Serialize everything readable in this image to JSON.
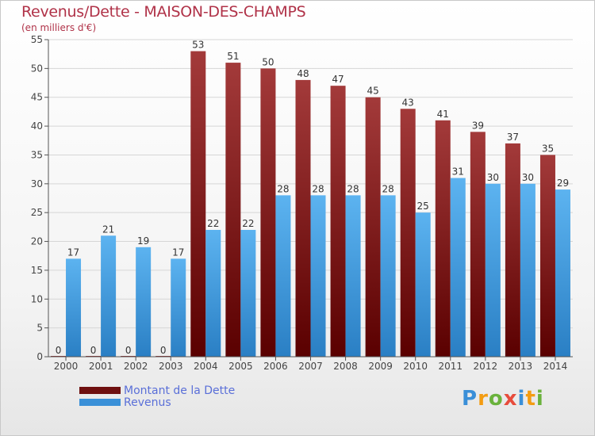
{
  "chart_data": {
    "type": "bar",
    "title": "Revenus/Dette - MAISON-DES-CHAMPS",
    "subtitle": "(en milliers d'€)",
    "categories": [
      "2000",
      "2001",
      "2002",
      "2003",
      "2004",
      "2005",
      "2006",
      "2007",
      "2008",
      "2009",
      "2010",
      "2011",
      "2012",
      "2013",
      "2014"
    ],
    "series": [
      {
        "name": "Montant de la Dette",
        "color": "#8b2a2a",
        "values": [
          0,
          0,
          0,
          0,
          53,
          51,
          50,
          48,
          47,
          45,
          43,
          41,
          39,
          37,
          35
        ]
      },
      {
        "name": "Revenus",
        "color": "#4ea6e6",
        "values": [
          17,
          21,
          19,
          17,
          22,
          22,
          28,
          28,
          28,
          28,
          25,
          31,
          30,
          30,
          29
        ]
      }
    ],
    "ylim": [
      0,
      55
    ],
    "yticks": [
      0,
      5,
      10,
      15,
      20,
      25,
      30,
      35,
      40,
      45,
      50,
      55
    ],
    "grid": true,
    "legend_position": "bottom-left"
  },
  "legend": {
    "items": [
      {
        "label": "Montant de la Dette",
        "color": "#6e0f0f"
      },
      {
        "label": "Revenus",
        "color": "#3a90d8"
      }
    ]
  },
  "logo": {
    "letters": [
      "P",
      "r",
      "o",
      "x",
      "i",
      "t",
      "i"
    ],
    "colors": [
      "#3a8fd8",
      "#f39c12",
      "#6ab23c",
      "#e74c3c",
      "#3a8fd8",
      "#f39c12",
      "#6ab23c"
    ]
  }
}
